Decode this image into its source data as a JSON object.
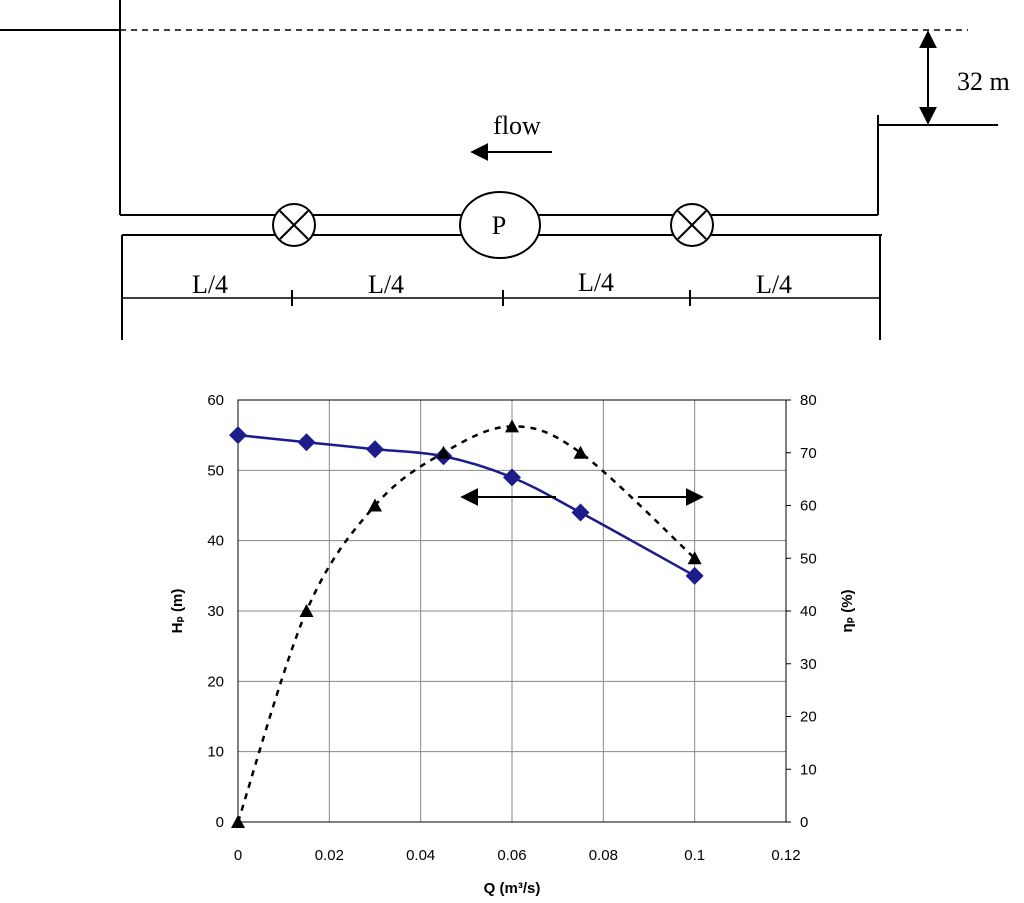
{
  "diagram": {
    "height_label": "32 m",
    "flow_label": "flow",
    "pump_label": "P",
    "segment_labels": [
      "L/4",
      "L/4",
      "L/4",
      "L/4"
    ]
  },
  "chart_data": {
    "type": "line",
    "x_label": "Q (m³/s)",
    "y_label": "Hₚ (m)",
    "y2_label": "ηₚ (%)",
    "x": [
      0,
      0.015,
      0.03,
      0.045,
      0.06,
      0.075,
      0.1
    ],
    "series": [
      {
        "color": "#1c1c8c",
        "values": [
          55,
          54,
          53,
          52,
          49,
          44,
          35
        ],
        "marker": "diamond",
        "dash": false
      },
      {
        "color": "#000000",
        "values": [
          0,
          40,
          60,
          70,
          75,
          70,
          50
        ],
        "marker": "triangle",
        "dash": true,
        "axis": "y2"
      }
    ],
    "xlim": [
      0,
      0.12
    ],
    "xticks": [
      0,
      0.02,
      0.04,
      0.06,
      0.08,
      0.1,
      0.12
    ],
    "ylim": [
      0,
      60
    ],
    "yticks": [
      0,
      10,
      20,
      30,
      40,
      50,
      60
    ],
    "y2lim": [
      0,
      80
    ],
    "y2ticks": [
      0,
      10,
      20,
      30,
      40,
      50,
      60,
      70,
      80
    ],
    "grid": true
  }
}
